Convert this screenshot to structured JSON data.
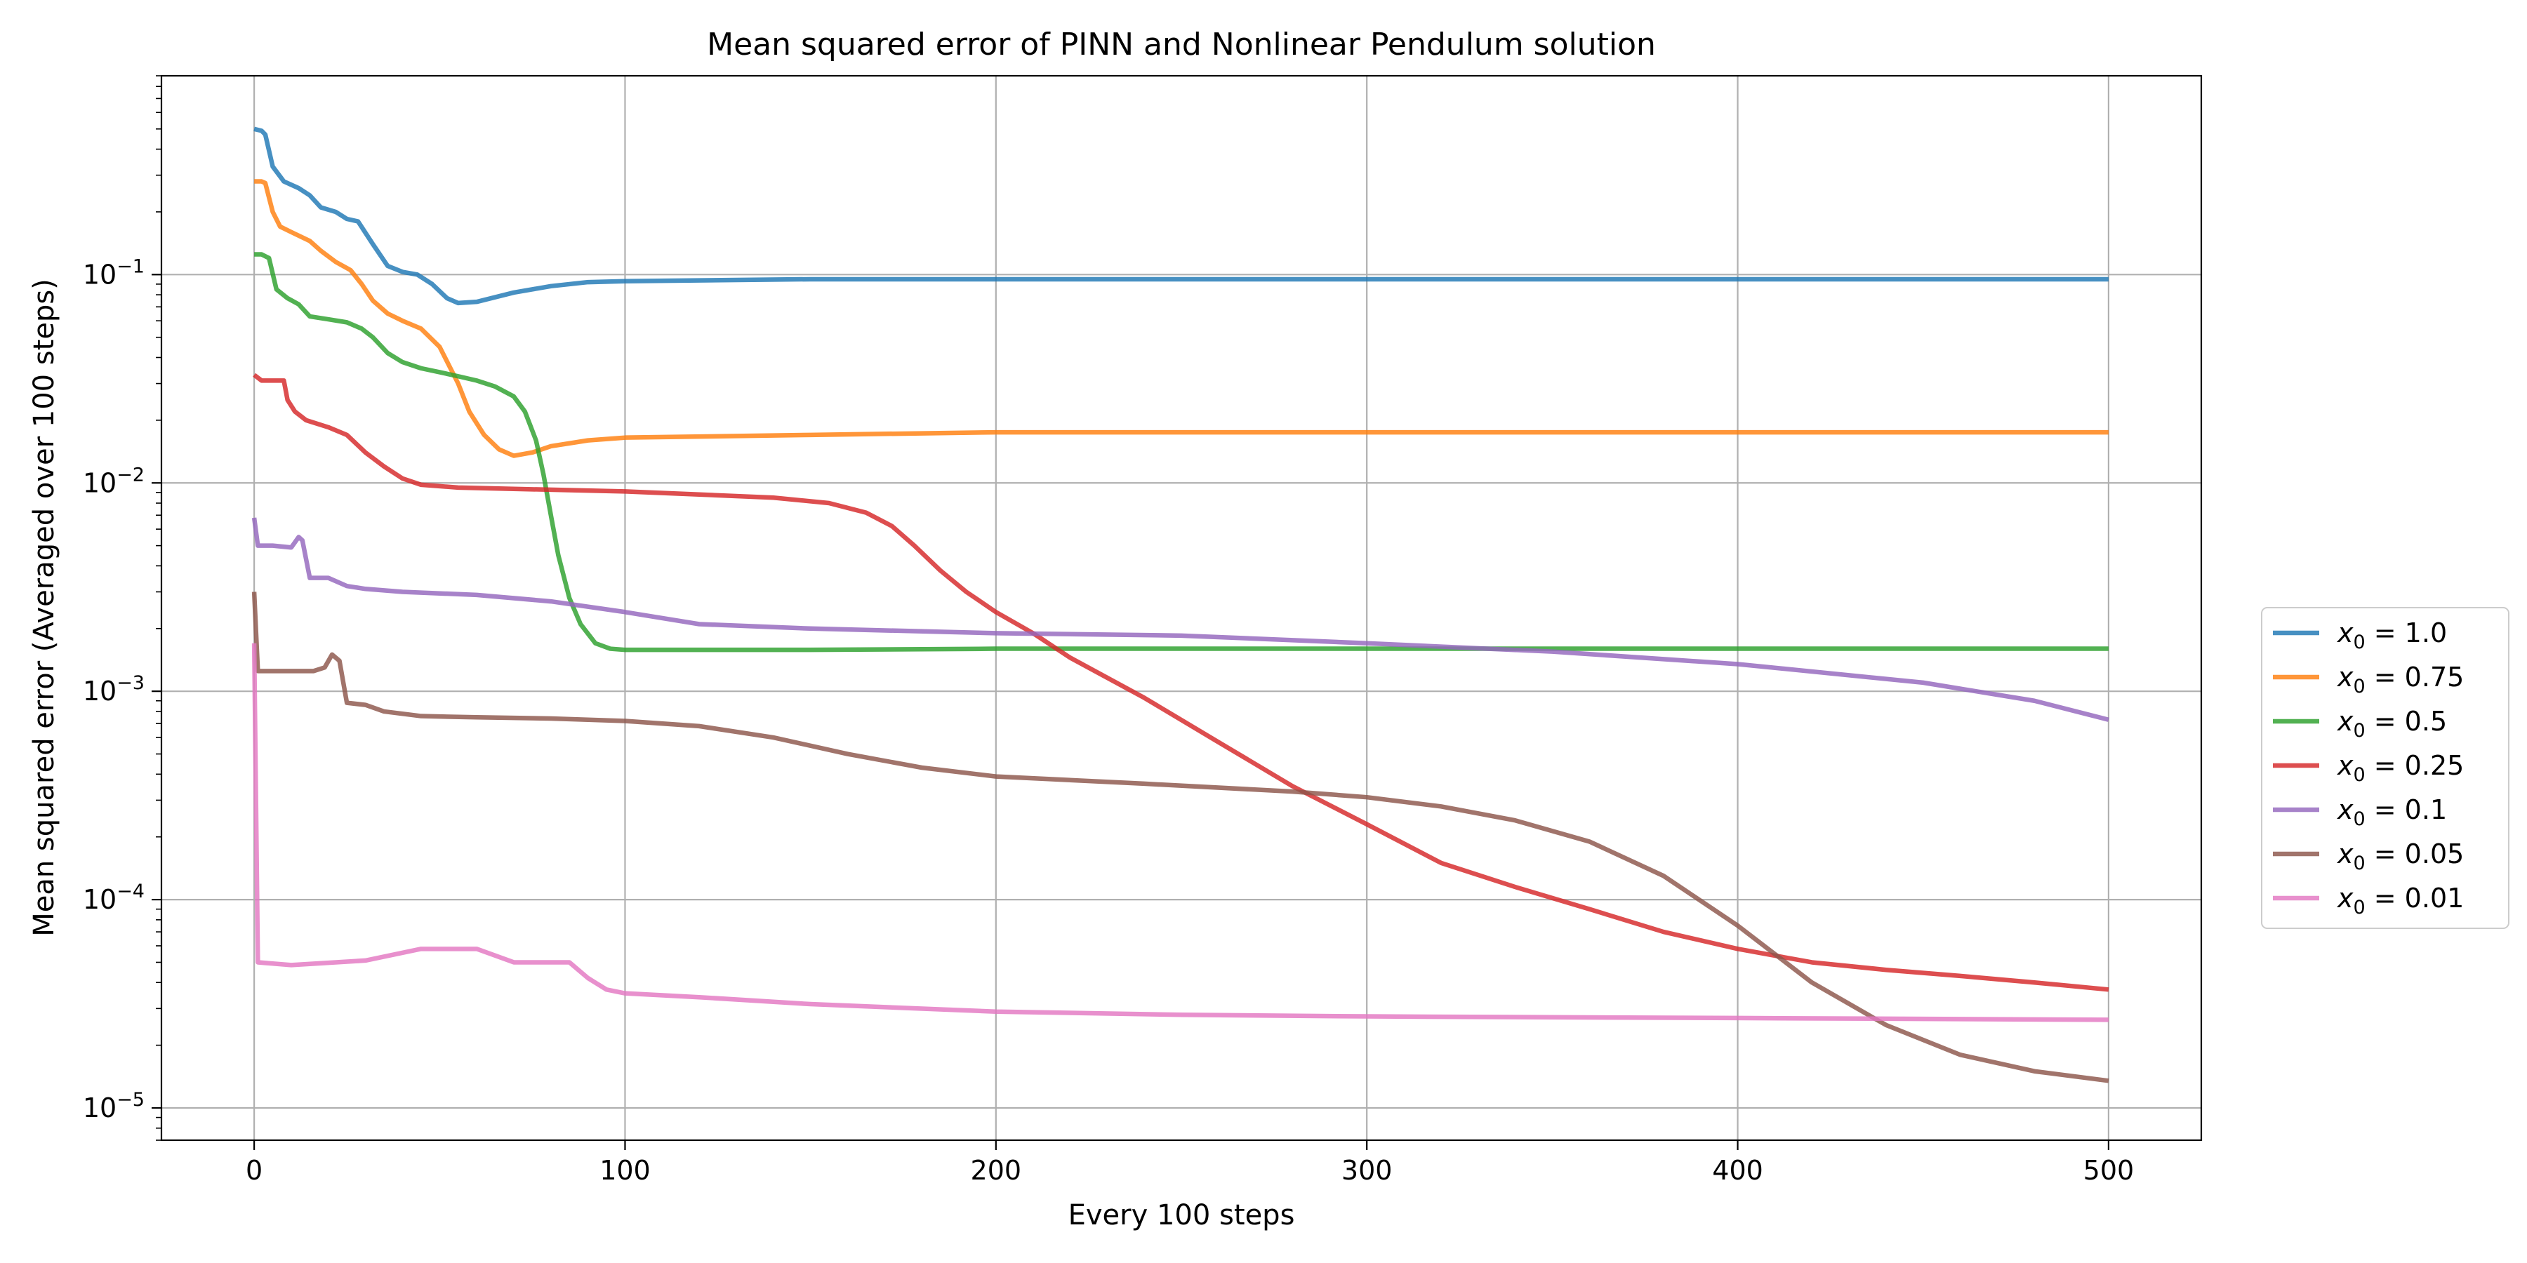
{
  "chart_data": {
    "type": "line",
    "title": "Mean squared error of PINN and Nonlinear Pendulum solution",
    "xlabel": "Every 100 steps",
    "ylabel": "Mean squared error (Averaged over 100 steps)",
    "x_scale": "linear",
    "y_scale": "log",
    "xlim": [
      -25,
      525
    ],
    "ylim": [
      7e-06,
      0.9
    ],
    "x_ticks": [
      0,
      100,
      200,
      300,
      400,
      500
    ],
    "x_tick_labels": [
      "0",
      "100",
      "200",
      "300",
      "400",
      "500"
    ],
    "y_ticks": [
      1e-05,
      0.0001,
      0.001,
      0.01,
      0.1
    ],
    "y_tick_labels": [
      {
        "base": "10",
        "exp": "−5"
      },
      {
        "base": "10",
        "exp": "−4"
      },
      {
        "base": "10",
        "exp": "−3"
      },
      {
        "base": "10",
        "exp": "−2"
      },
      {
        "base": "10",
        "exp": "−1"
      }
    ],
    "grid": true,
    "legend_position": "outside-right",
    "series": [
      {
        "name": "x0 = 1.0",
        "legend_label": {
          "var": "x",
          "sub": "0",
          "eq": " = 1.0"
        },
        "color": "#1f77b4",
        "points": [
          [
            0,
            0.5
          ],
          [
            2,
            0.49
          ],
          [
            3,
            0.47
          ],
          [
            5,
            0.33
          ],
          [
            8,
            0.28
          ],
          [
            12,
            0.26
          ],
          [
            15,
            0.24
          ],
          [
            18,
            0.21
          ],
          [
            22,
            0.2
          ],
          [
            25,
            0.185
          ],
          [
            28,
            0.18
          ],
          [
            32,
            0.14
          ],
          [
            36,
            0.11
          ],
          [
            40,
            0.103
          ],
          [
            44,
            0.1
          ],
          [
            48,
            0.09
          ],
          [
            52,
            0.077
          ],
          [
            55,
            0.073
          ],
          [
            60,
            0.074
          ],
          [
            70,
            0.082
          ],
          [
            80,
            0.088
          ],
          [
            90,
            0.092
          ],
          [
            100,
            0.093
          ],
          [
            150,
            0.095
          ],
          [
            200,
            0.095
          ],
          [
            300,
            0.095
          ],
          [
            400,
            0.095
          ],
          [
            500,
            0.095
          ]
        ]
      },
      {
        "name": "x0 = 0.75",
        "legend_label": {
          "var": "x",
          "sub": "0",
          "eq": " = 0.75"
        },
        "color": "#ff7f0e",
        "points": [
          [
            0,
            0.28
          ],
          [
            2,
            0.28
          ],
          [
            3,
            0.275
          ],
          [
            5,
            0.2
          ],
          [
            7,
            0.17
          ],
          [
            10,
            0.16
          ],
          [
            15,
            0.145
          ],
          [
            18,
            0.13
          ],
          [
            22,
            0.115
          ],
          [
            26,
            0.105
          ],
          [
            29,
            0.09
          ],
          [
            32,
            0.075
          ],
          [
            36,
            0.065
          ],
          [
            40,
            0.06
          ],
          [
            45,
            0.055
          ],
          [
            50,
            0.045
          ],
          [
            55,
            0.03
          ],
          [
            58,
            0.022
          ],
          [
            62,
            0.017
          ],
          [
            66,
            0.0145
          ],
          [
            70,
            0.0135
          ],
          [
            75,
            0.014
          ],
          [
            80,
            0.015
          ],
          [
            90,
            0.016
          ],
          [
            100,
            0.0165
          ],
          [
            150,
            0.017
          ],
          [
            200,
            0.0175
          ],
          [
            300,
            0.0175
          ],
          [
            400,
            0.0175
          ],
          [
            500,
            0.0175
          ]
        ]
      },
      {
        "name": "x0 = 0.5",
        "legend_label": {
          "var": "x",
          "sub": "0",
          "eq": " = 0.5"
        },
        "color": "#2ca02c",
        "points": [
          [
            0,
            0.125
          ],
          [
            2,
            0.125
          ],
          [
            4,
            0.12
          ],
          [
            6,
            0.085
          ],
          [
            9,
            0.077
          ],
          [
            12,
            0.072
          ],
          [
            15,
            0.063
          ],
          [
            20,
            0.061
          ],
          [
            25,
            0.059
          ],
          [
            29,
            0.055
          ],
          [
            32,
            0.05
          ],
          [
            36,
            0.042
          ],
          [
            40,
            0.038
          ],
          [
            45,
            0.0355
          ],
          [
            50,
            0.034
          ],
          [
            55,
            0.0325
          ],
          [
            60,
            0.031
          ],
          [
            65,
            0.029
          ],
          [
            70,
            0.026
          ],
          [
            73,
            0.022
          ],
          [
            76,
            0.016
          ],
          [
            78,
            0.011
          ],
          [
            80,
            0.007
          ],
          [
            82,
            0.0045
          ],
          [
            85,
            0.0028
          ],
          [
            88,
            0.0021
          ],
          [
            92,
            0.0017
          ],
          [
            96,
            0.0016
          ],
          [
            100,
            0.00158
          ],
          [
            150,
            0.00158
          ],
          [
            200,
            0.0016
          ],
          [
            300,
            0.0016
          ],
          [
            400,
            0.0016
          ],
          [
            500,
            0.0016
          ]
        ]
      },
      {
        "name": "x0 = 0.25",
        "legend_label": {
          "var": "x",
          "sub": "0",
          "eq": " = 0.25"
        },
        "color": "#d62728",
        "points": [
          [
            0,
            0.033
          ],
          [
            2,
            0.031
          ],
          [
            5,
            0.031
          ],
          [
            8,
            0.031
          ],
          [
            9,
            0.025
          ],
          [
            11,
            0.022
          ],
          [
            14,
            0.02
          ],
          [
            20,
            0.0185
          ],
          [
            25,
            0.017
          ],
          [
            30,
            0.014
          ],
          [
            35,
            0.012
          ],
          [
            40,
            0.0105
          ],
          [
            45,
            0.0098
          ],
          [
            55,
            0.0095
          ],
          [
            100,
            0.0091
          ],
          [
            120,
            0.0088
          ],
          [
            140,
            0.0085
          ],
          [
            155,
            0.008
          ],
          [
            165,
            0.0072
          ],
          [
            172,
            0.0062
          ],
          [
            178,
            0.005
          ],
          [
            185,
            0.0038
          ],
          [
            192,
            0.003
          ],
          [
            200,
            0.0024
          ],
          [
            210,
            0.0019
          ],
          [
            220,
            0.00145
          ],
          [
            240,
            0.00093
          ],
          [
            260,
            0.00057
          ],
          [
            280,
            0.00035
          ],
          [
            300,
            0.00023
          ],
          [
            320,
            0.00015
          ],
          [
            340,
            0.000115
          ],
          [
            360,
            9e-05
          ],
          [
            380,
            7e-05
          ],
          [
            400,
            5.8e-05
          ],
          [
            420,
            5e-05
          ],
          [
            440,
            4.6e-05
          ],
          [
            460,
            4.3e-05
          ],
          [
            480,
            4e-05
          ],
          [
            500,
            3.7e-05
          ]
        ]
      },
      {
        "name": "x0 = 0.1",
        "legend_label": {
          "var": "x",
          "sub": "0",
          "eq": " = 0.1"
        },
        "color": "#9467bd",
        "points": [
          [
            0,
            0.0068
          ],
          [
            1,
            0.005
          ],
          [
            5,
            0.005
          ],
          [
            10,
            0.0049
          ],
          [
            12,
            0.0055
          ],
          [
            13,
            0.0053
          ],
          [
            15,
            0.0035
          ],
          [
            20,
            0.0035
          ],
          [
            25,
            0.0032
          ],
          [
            30,
            0.0031
          ],
          [
            40,
            0.003
          ],
          [
            60,
            0.0029
          ],
          [
            80,
            0.0027
          ],
          [
            100,
            0.0024
          ],
          [
            120,
            0.0021
          ],
          [
            150,
            0.002
          ],
          [
            200,
            0.0019
          ],
          [
            250,
            0.00185
          ],
          [
            300,
            0.0017
          ],
          [
            350,
            0.00155
          ],
          [
            400,
            0.00135
          ],
          [
            450,
            0.0011
          ],
          [
            480,
            0.0009
          ],
          [
            500,
            0.00073
          ]
        ]
      },
      {
        "name": "x0 = 0.05",
        "legend_label": {
          "var": "x",
          "sub": "0",
          "eq": " = 0.05"
        },
        "color": "#8c564b",
        "points": [
          [
            0,
            0.003
          ],
          [
            1,
            0.00125
          ],
          [
            10,
            0.00125
          ],
          [
            16,
            0.00125
          ],
          [
            19,
            0.0013
          ],
          [
            21,
            0.0015
          ],
          [
            23,
            0.0014
          ],
          [
            25,
            0.00088
          ],
          [
            30,
            0.00086
          ],
          [
            35,
            0.0008
          ],
          [
            45,
            0.00076
          ],
          [
            60,
            0.00075
          ],
          [
            80,
            0.00074
          ],
          [
            100,
            0.00072
          ],
          [
            120,
            0.00068
          ],
          [
            140,
            0.0006
          ],
          [
            160,
            0.0005
          ],
          [
            180,
            0.00043
          ],
          [
            200,
            0.00039
          ],
          [
            240,
            0.00036
          ],
          [
            280,
            0.00033
          ],
          [
            300,
            0.00031
          ],
          [
            320,
            0.00028
          ],
          [
            340,
            0.00024
          ],
          [
            360,
            0.00019
          ],
          [
            380,
            0.00013
          ],
          [
            400,
            7.5e-05
          ],
          [
            420,
            4e-05
          ],
          [
            440,
            2.5e-05
          ],
          [
            460,
            1.8e-05
          ],
          [
            480,
            1.5e-05
          ],
          [
            500,
            1.35e-05
          ]
        ]
      },
      {
        "name": "x0 = 0.01",
        "legend_label": {
          "var": "x",
          "sub": "0",
          "eq": " = 0.01"
        },
        "color": "#e377c2",
        "points": [
          [
            0,
            0.0017
          ],
          [
            1,
            5e-05
          ],
          [
            10,
            4.85e-05
          ],
          [
            30,
            5.1e-05
          ],
          [
            45,
            5.8e-05
          ],
          [
            60,
            5.8e-05
          ],
          [
            70,
            5e-05
          ],
          [
            80,
            5e-05
          ],
          [
            85,
            5e-05
          ],
          [
            90,
            4.2e-05
          ],
          [
            95,
            3.7e-05
          ],
          [
            100,
            3.55e-05
          ],
          [
            120,
            3.4e-05
          ],
          [
            150,
            3.15e-05
          ],
          [
            200,
            2.9e-05
          ],
          [
            250,
            2.8e-05
          ],
          [
            300,
            2.75e-05
          ],
          [
            400,
            2.7e-05
          ],
          [
            500,
            2.65e-05
          ]
        ]
      }
    ]
  }
}
